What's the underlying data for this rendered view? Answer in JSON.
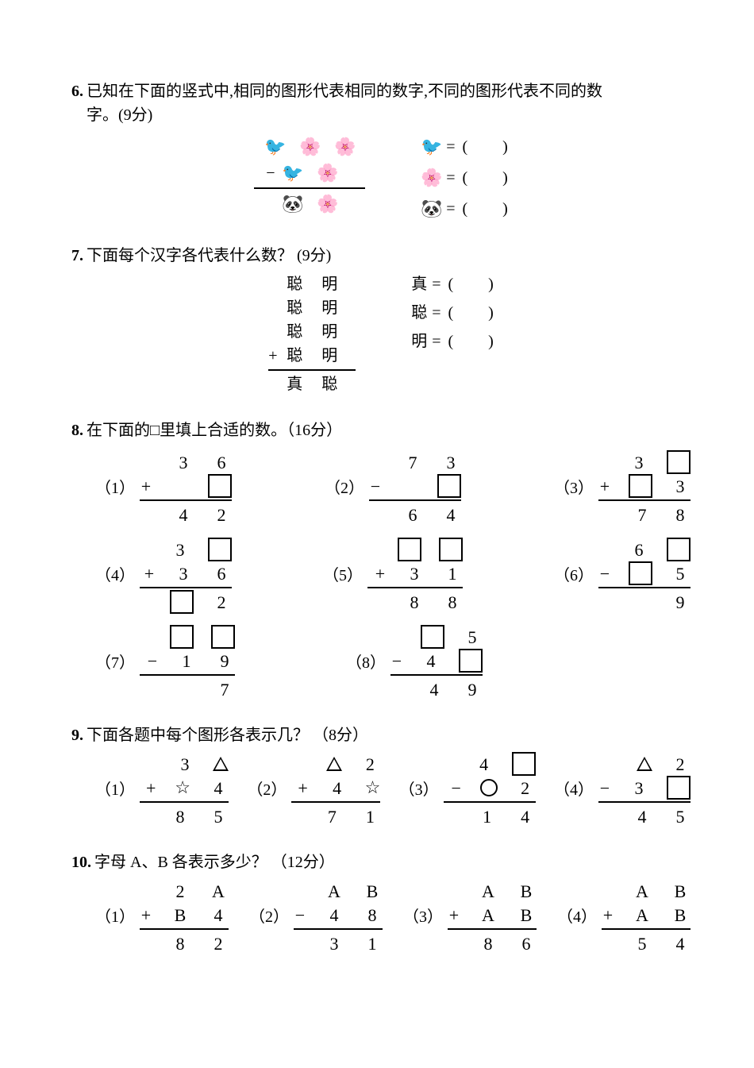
{
  "q6": {
    "num": "6.",
    "text1": "已知在下面的竖式中,相同的图形代表相同的数字,不同的图形代表不同的数",
    "text2": "字。(9分)",
    "row1": [
      "🐦",
      "🌸",
      "🌸"
    ],
    "row2_sign": "−",
    "row2": [
      "🐦",
      "🌸"
    ],
    "row3": [
      "🐼",
      "🌸"
    ],
    "legend": [
      {
        "sym": "🐦",
        "eq": "= (",
        "close": ")"
      },
      {
        "sym": "🌸",
        "eq": "= (",
        "close": ")"
      },
      {
        "sym": "🐼",
        "eq": "= (",
        "close": ")"
      }
    ]
  },
  "q7": {
    "num": "7.",
    "text": "下面每个汉字各代表什么数？  (9分)",
    "rows": [
      [
        "",
        "聪",
        "明"
      ],
      [
        "",
        "聪",
        "明"
      ],
      [
        "",
        "聪",
        "明"
      ],
      [
        "+",
        "聪",
        "明"
      ]
    ],
    "result": [
      "真",
      "聪"
    ],
    "legend": [
      {
        "lab": "真",
        "eq": "= (",
        "close": ")"
      },
      {
        "lab": "聪",
        "eq": "= (",
        "close": ")"
      },
      {
        "lab": "明",
        "eq": "= (",
        "close": ")"
      }
    ]
  },
  "q8": {
    "num": "8.",
    "text": "在下面的□里填上合适的数。（16分）",
    "problems": [
      {
        "id": "（1）",
        "r1": [
          "3",
          "6"
        ],
        "op": "+",
        "r2": [
          "",
          "□"
        ],
        "res": [
          "4",
          "2"
        ]
      },
      {
        "id": "（2）",
        "r1": [
          "7",
          "3"
        ],
        "op": "−",
        "r2": [
          "",
          "□"
        ],
        "res": [
          "6",
          "4"
        ]
      },
      {
        "id": "（3）",
        "r1": [
          "3",
          "□"
        ],
        "op": "+",
        "r2": [
          "□",
          "3"
        ],
        "res": [
          "7",
          "8"
        ]
      },
      {
        "id": "（4）",
        "r1": [
          "3",
          "□"
        ],
        "op": "+",
        "r2": [
          "3",
          "6"
        ],
        "res": [
          "□",
          "2"
        ]
      },
      {
        "id": "（5）",
        "r1": [
          "□",
          "□"
        ],
        "op": "+",
        "r2": [
          "3",
          "1"
        ],
        "res": [
          "8",
          "8"
        ]
      },
      {
        "id": "（6）",
        "r1": [
          "6",
          "□"
        ],
        "op": "−",
        "r2": [
          "□",
          "5"
        ],
        "res": [
          "",
          "9"
        ]
      },
      {
        "id": "（7）",
        "r1": [
          "□",
          "□"
        ],
        "op": "−",
        "r2": [
          "1",
          "9"
        ],
        "res": [
          "",
          "7"
        ]
      },
      {
        "id": "（8）",
        "r1": [
          "□",
          "5"
        ],
        "op": "−",
        "r2": [
          "4",
          "□"
        ],
        "res": [
          "4",
          "9"
        ]
      }
    ]
  },
  "q9": {
    "num": "9.",
    "text": "下面各题中每个图形各表示几？ （8分）",
    "problems": [
      {
        "id": "（1）",
        "r1": [
          "3",
          "△"
        ],
        "op": "+",
        "r2": [
          "☆",
          "4"
        ],
        "res": [
          "8",
          "5"
        ]
      },
      {
        "id": "（2）",
        "r1": [
          "△",
          "2"
        ],
        "op": "+",
        "r2": [
          "4",
          "☆"
        ],
        "res": [
          "7",
          "1"
        ]
      },
      {
        "id": "（3）",
        "r1": [
          "4",
          "□"
        ],
        "op": "−",
        "r2": [
          "○",
          "2"
        ],
        "res": [
          "1",
          "4"
        ]
      },
      {
        "id": "（4）",
        "r1": [
          "△",
          "2"
        ],
        "op": "−",
        "r2": [
          "3",
          "□"
        ],
        "res": [
          "4",
          "5"
        ]
      }
    ]
  },
  "q10": {
    "num": "10.",
    "text": "字母 A、B 各表示多少？ （12分）",
    "problems": [
      {
        "id": "（1）",
        "r1": [
          "2",
          "A"
        ],
        "op": "+",
        "r2": [
          "B",
          "4"
        ],
        "res": [
          "8",
          "2"
        ]
      },
      {
        "id": "（2）",
        "r1": [
          "A",
          "B"
        ],
        "op": "−",
        "r2": [
          "4",
          "8"
        ],
        "res": [
          "3",
          "1"
        ]
      },
      {
        "id": "（3）",
        "r1": [
          "A",
          "B"
        ],
        "op": "+",
        "r2": [
          "A",
          "B"
        ],
        "res": [
          "8",
          "6"
        ]
      },
      {
        "id": "（4）",
        "r1": [
          "A",
          "B"
        ],
        "op": "+",
        "r2": [
          "A",
          "B"
        ],
        "res": [
          "5",
          "4"
        ]
      }
    ]
  }
}
